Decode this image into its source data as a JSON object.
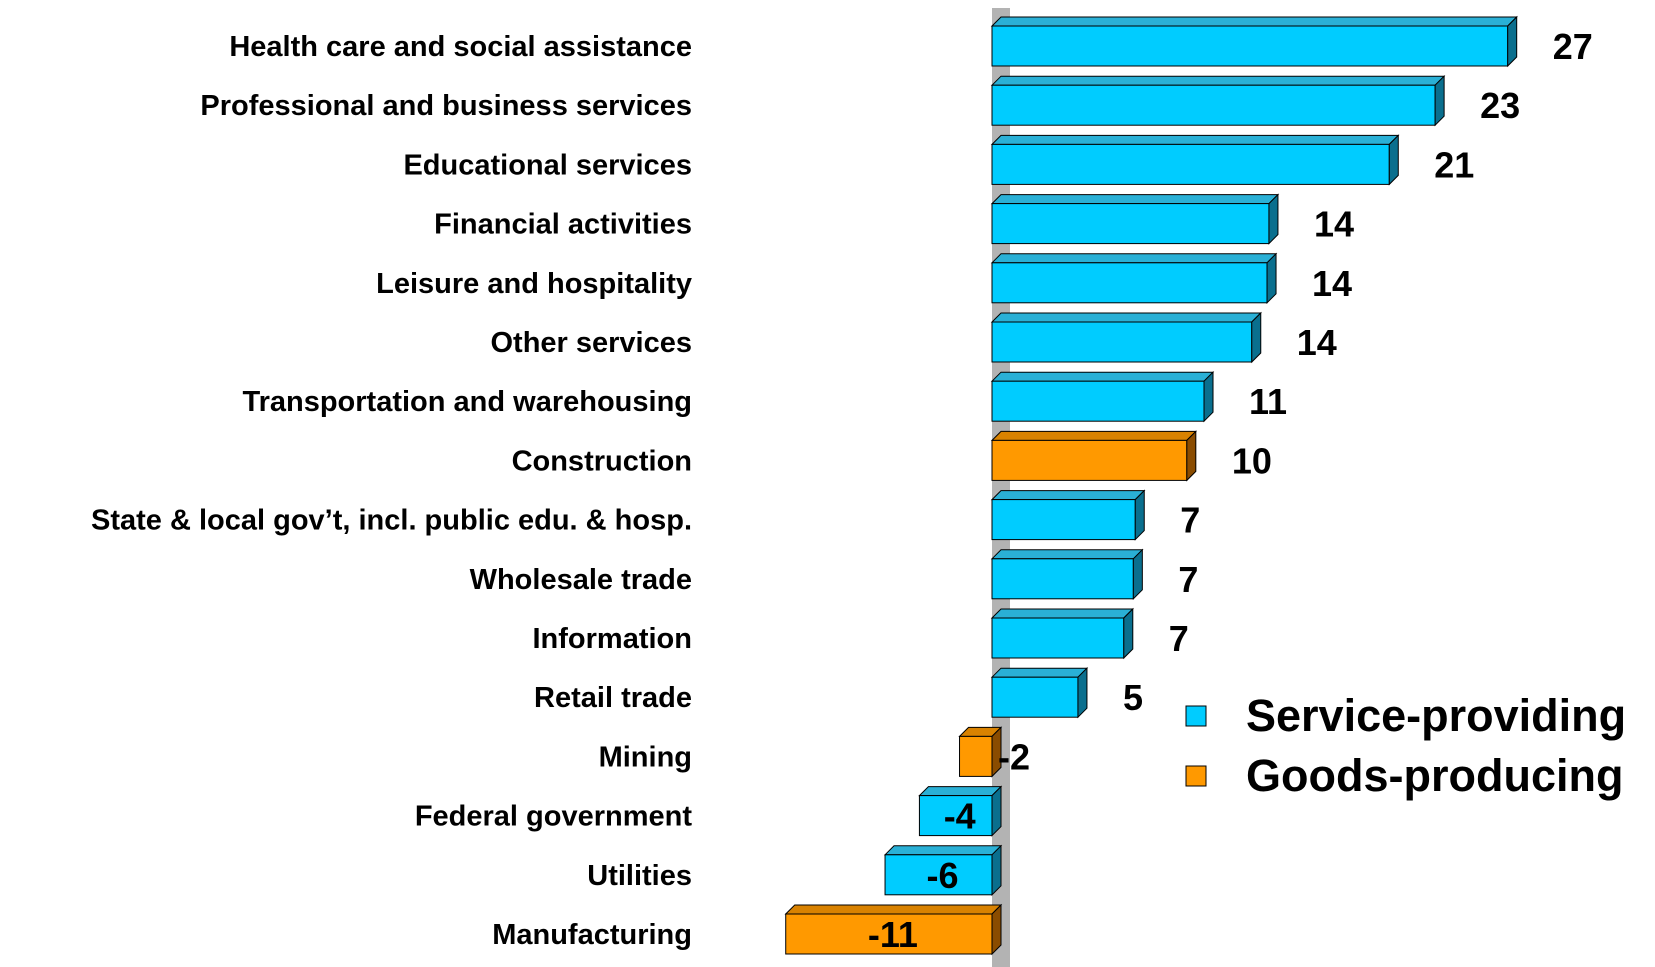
{
  "chart_data": {
    "type": "bar",
    "orientation": "horizontal",
    "title": "",
    "xlabel": "",
    "ylabel": "",
    "xlim": [
      -11,
      27
    ],
    "grid": false,
    "legend_position": "right",
    "categories": [
      "Health care and social assistance",
      "Professional and business services",
      "Educational services",
      "Financial activities",
      "Leisure and hospitality",
      "Other services",
      "Transportation and warehousing",
      "Construction",
      "State & local gov’t, incl.  public edu. & hosp.",
      "Wholesale trade",
      "Information",
      "Retail trade",
      "Mining",
      "Federal government",
      "Utilities",
      "Manufacturing"
    ],
    "values": [
      27,
      23,
      21,
      14,
      14,
      14,
      11,
      10,
      7,
      7,
      7,
      5,
      -2,
      -4,
      -6,
      -11
    ],
    "bar_values": [
      27,
      23.2,
      20.8,
      14.5,
      14.4,
      13.6,
      11.1,
      10.2,
      7.5,
      7.4,
      6.9,
      4.5,
      -1.7,
      -3.8,
      -5.6,
      -10.8
    ],
    "groups": [
      "service",
      "service",
      "service",
      "service",
      "service",
      "service",
      "service",
      "goods",
      "service",
      "service",
      "service",
      "service",
      "goods",
      "service",
      "service",
      "goods"
    ],
    "legend": [
      {
        "key": "service",
        "label": "Service-providing"
      },
      {
        "key": "goods",
        "label": "Goods-producing"
      }
    ],
    "colors": {
      "service": "#00ccff",
      "service_top": "#2ab0d6",
      "service_side": "#0a6f8e",
      "goods": "#ff9900",
      "goods_top": "#d98200",
      "goods_side": "#8a4c00",
      "axis": "#b3b3b3"
    }
  }
}
